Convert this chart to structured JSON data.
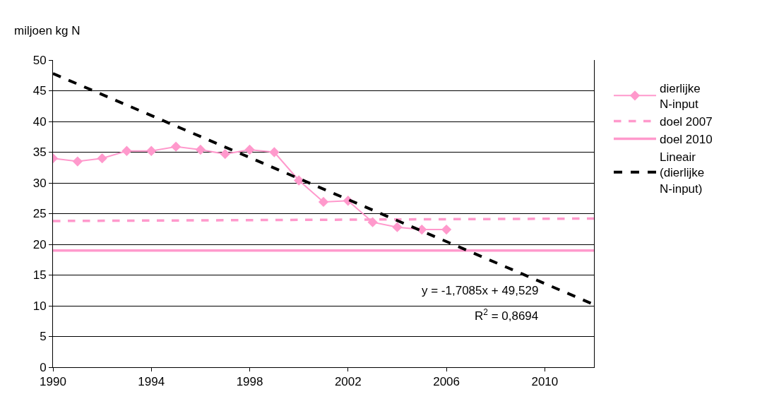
{
  "chart_data": {
    "type": "line",
    "ylabel": "miljoen kg N",
    "series": [
      {
        "name": "dierlijke N-input",
        "color": "#ff99cc",
        "marker": "diamond",
        "line_style": "solid",
        "x": [
          1990,
          1991,
          1992,
          1993,
          1994,
          1995,
          1996,
          1997,
          1998,
          1999,
          2000,
          2001,
          2002,
          2003,
          2004,
          2005,
          2006
        ],
        "values": [
          34.0,
          33.5,
          34.0,
          35.2,
          35.2,
          35.9,
          35.4,
          34.7,
          35.4,
          35.0,
          30.4,
          26.9,
          27.1,
          23.6,
          22.8,
          22.4,
          22.4
        ]
      },
      {
        "name": "doel 2007",
        "color": "#ff99cc",
        "marker": "none",
        "line_style": "dashed",
        "x": [
          1990,
          2012
        ],
        "values": [
          23.8,
          24.2
        ]
      },
      {
        "name": "doel 2010",
        "color": "#ff99cc",
        "marker": "none",
        "line_style": "solid",
        "x": [
          1990,
          2012
        ],
        "values": [
          19.0,
          19.0
        ]
      },
      {
        "name": "Lineair (dierlijke N-input)",
        "color": "#000000",
        "marker": "none",
        "line_style": "dashed",
        "x": [
          1990,
          2012
        ],
        "values": [
          47.8,
          10.2
        ]
      }
    ],
    "annotations": [
      "y = -1,7085x + 49,529",
      "R$^{2}$ = 0,8694"
    ],
    "xlim": [
      1990,
      2012
    ],
    "xticks": [
      1990,
      1994,
      1998,
      2002,
      2006,
      2010
    ],
    "ylim": [
      0,
      50
    ],
    "yticks": [
      0,
      5,
      10,
      15,
      20,
      25,
      30,
      35,
      40,
      45,
      50
    ],
    "grid": "y",
    "legend": "right"
  }
}
